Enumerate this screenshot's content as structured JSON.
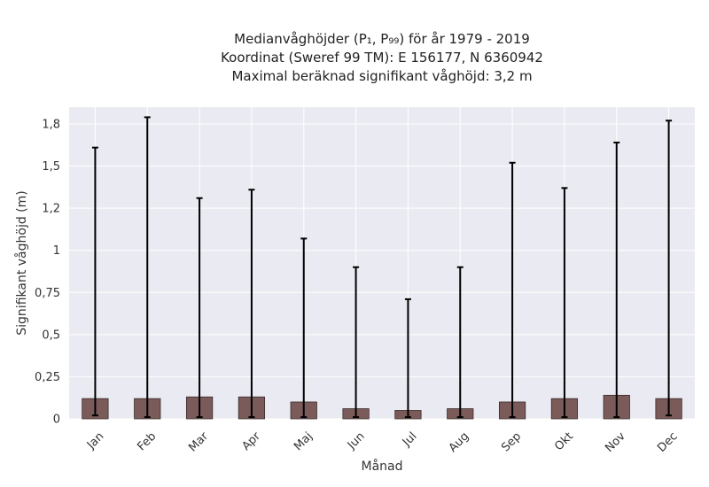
{
  "chart_data": {
    "type": "bar",
    "title_lines": [
      "Medianvåghöjder (P₁, P₉₉) för år 1979 - 2019",
      "Koordinat (Sweref 99 TM): E 156177, N 6360942",
      "Maximal beräknad signifikant våghöjd: 3,2 m"
    ],
    "xlabel": "Månad",
    "ylabel": "Signifikant våghöjd (m)",
    "categories": [
      "Jan",
      "Feb",
      "Mar",
      "Apr",
      "Maj",
      "Jun",
      "Jul",
      "Aug",
      "Sep",
      "Okt",
      "Nov",
      "Dec"
    ],
    "values": [
      0.12,
      0.12,
      0.13,
      0.13,
      0.1,
      0.06,
      0.05,
      0.06,
      0.1,
      0.12,
      0.14,
      0.12
    ],
    "error_low": [
      0.02,
      0.01,
      0.01,
      0.01,
      0.01,
      0.01,
      0.01,
      0.01,
      0.01,
      0.01,
      0.01,
      0.02
    ],
    "error_high": [
      1.61,
      1.79,
      1.31,
      1.36,
      1.07,
      0.9,
      0.71,
      0.9,
      1.52,
      1.37,
      1.64,
      1.77
    ],
    "ylim": [
      0,
      1.85
    ],
    "yticks": [
      0,
      0.25,
      0.5,
      0.75,
      1,
      1.25,
      1.5,
      1.75
    ],
    "ytick_labels": [
      "0",
      "0,25",
      "0,5",
      "0,75",
      "1",
      "1,2",
      "1,5",
      "1,8"
    ],
    "grid": true,
    "colors": {
      "bar": "#7b5a5a",
      "bar_edge": "#3a2a2a",
      "error": "#000000",
      "plot_bg": "#eaeaf2",
      "grid": "#ffffff"
    }
  }
}
